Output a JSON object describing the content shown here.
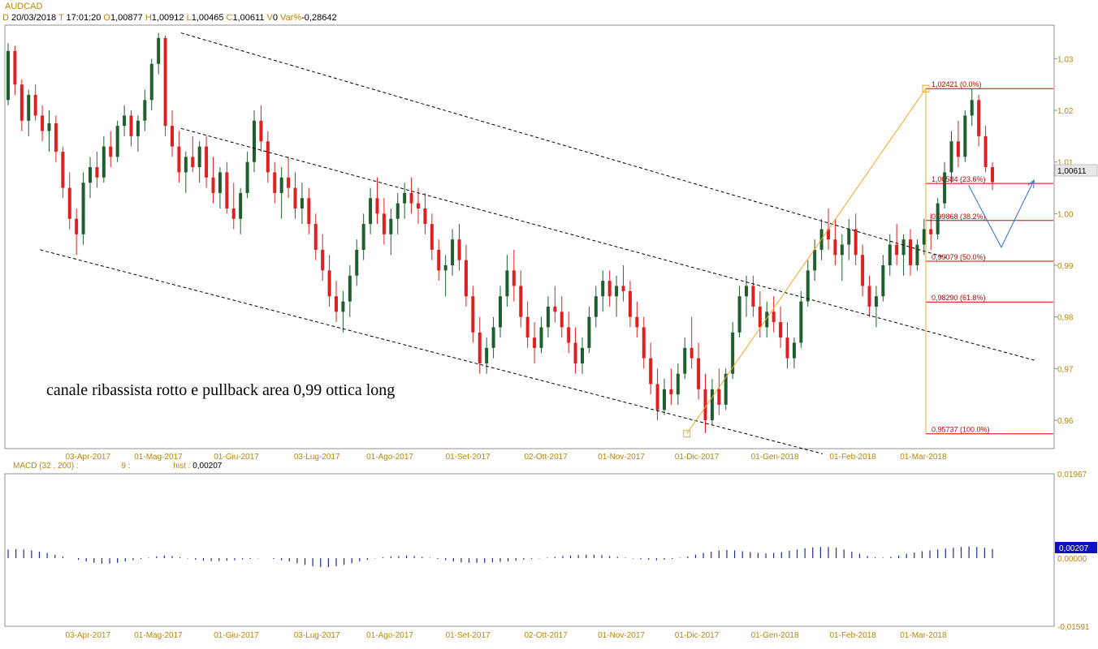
{
  "header": {
    "symbol": "AUDCAD",
    "date_key": "D",
    "date": "20/03/2018",
    "time_key": "T",
    "time": "17:01:20",
    "open_key": "O",
    "open": "1,00877",
    "high_key": "H",
    "high": "1,00912",
    "low_key": "L",
    "low": "1,00465",
    "close_key": "C",
    "close": "1,00611",
    "volume_key": "V",
    "volume": "0",
    "varpct_key": "Var%",
    "varpct": "-0,28642"
  },
  "macd_header": {
    "name": "MACD",
    "params": "(32 , 200) :",
    "signal": "9 :",
    "hist_label": "hist :",
    "hist_value": "0,00207"
  },
  "colors": {
    "up": "#1f5f2f",
    "down": "#e02020",
    "fib": "#d00000",
    "channel": "#000000",
    "orange": "#f5a623",
    "arrow": "#2a6fd6",
    "macd": "#1a2a9a",
    "tick": "#b8860b"
  },
  "chart_data": [
    {
      "type": "candlestick",
      "title": "AUDCAD",
      "x_ticks": [
        "03-Apr-2017",
        "01-Mag-2017",
        "01-Giu-2017",
        "03-Lug-2017",
        "01-Ago-2017",
        "01-Set-2017",
        "02-Ott-2017",
        "01-Nov-2017",
        "01-Dic-2017",
        "01-Gen-2018",
        "01-Feb-2018",
        "01-Mar-2018"
      ],
      "y_ticks": [
        "1,03",
        "1,02",
        "1,01",
        "1,00",
        "0,99",
        "0,98",
        "0,97",
        "0,96"
      ],
      "ylim": [
        0.9545,
        1.0365
      ],
      "last_price_label": "1,00611",
      "annotation": "canale ribassista rotto e pullback area 0,99 ottica long",
      "fibonacci": [
        {
          "label": "1,02421 (0.0%)",
          "value": 1.02421
        },
        {
          "label": "1,00584 (23.6%)",
          "value": 1.00584
        },
        {
          "label": "0,99868 (38.2%)",
          "value": 0.99868
        },
        {
          "label": "0,99079 (50.0%)",
          "value": 0.99079
        },
        {
          "label": "0,98290 (61.8%)",
          "value": 0.9829
        },
        {
          "label": "0,95737 (100.0%)",
          "value": 0.95737
        }
      ],
      "channel_lines": [
        {
          "name": "upper",
          "from": {
            "date": "2017-05-10",
            "value": 1.035
          },
          "to": {
            "date": "2018-03-10",
            "value": 0.9915
          }
        },
        {
          "name": "middle",
          "from": {
            "date": "2017-05-10",
            "value": 1.0165
          },
          "to": {
            "date": "2018-04-15",
            "value": 0.9715
          }
        },
        {
          "name": "lower",
          "from": {
            "date": "2017-03-15",
            "value": 0.993
          },
          "to": {
            "date": "2018-01-20",
            "value": 0.9535
          }
        }
      ],
      "fib_anchor_line": {
        "from": {
          "date": "2017-11-27",
          "value": 0.95737
        },
        "to": {
          "date": "2018-03-02",
          "value": 1.02421
        }
      },
      "projection_arrow": [
        {
          "date": "2018-03-19",
          "value": 1.0055
        },
        {
          "date": "2018-04-01",
          "value": 0.9935
        },
        {
          "date": "2018-04-14",
          "value": 1.0065
        }
      ],
      "candles": [
        [
          1.022,
          1.033,
          1.021,
          1.0315
        ],
        [
          1.0315,
          1.0325,
          1.023,
          1.025
        ],
        [
          1.025,
          1.026,
          1.016,
          1.018
        ],
        [
          1.018,
          1.024,
          1.015,
          1.023
        ],
        [
          1.023,
          1.025,
          1.018,
          1.019
        ],
        [
          1.019,
          1.021,
          1.014,
          1.016
        ],
        [
          1.016,
          1.02,
          1.012,
          1.0175
        ],
        [
          1.0175,
          1.019,
          1.01,
          1.012
        ],
        [
          1.012,
          1.013,
          1.003,
          1.005
        ],
        [
          1.005,
          1.008,
          0.997,
          0.999
        ],
        [
          0.999,
          1.001,
          0.992,
          0.996
        ],
        [
          0.996,
          1.008,
          0.994,
          1.006
        ],
        [
          1.006,
          1.011,
          1.003,
          1.009
        ],
        [
          1.009,
          1.012,
          1.005,
          1.007
        ],
        [
          1.007,
          1.015,
          1.006,
          1.013
        ],
        [
          1.013,
          1.016,
          1.009,
          1.011
        ],
        [
          1.011,
          1.018,
          1.01,
          1.017
        ],
        [
          1.017,
          1.021,
          1.015,
          1.019
        ],
        [
          1.019,
          1.02,
          1.013,
          1.015
        ],
        [
          1.015,
          1.019,
          1.012,
          1.018
        ],
        [
          1.018,
          1.024,
          1.016,
          1.022
        ],
        [
          1.022,
          1.03,
          1.02,
          1.029
        ],
        [
          1.029,
          1.035,
          1.027,
          1.034
        ],
        [
          1.034,
          1.0345,
          1.015,
          1.017
        ],
        [
          1.017,
          1.02,
          1.011,
          1.013
        ],
        [
          1.013,
          1.016,
          1.006,
          1.008
        ],
        [
          1.008,
          1.012,
          1.004,
          1.011
        ],
        [
          1.011,
          1.015,
          1.008,
          1.009
        ],
        [
          1.009,
          1.014,
          1.006,
          1.013
        ],
        [
          1.013,
          1.015,
          1.005,
          1.007
        ],
        [
          1.007,
          1.011,
          1.002,
          1.004
        ],
        [
          1.004,
          1.009,
          1.001,
          1.008
        ],
        [
          1.008,
          1.01,
          1.0,
          1.001
        ],
        [
          1.001,
          1.006,
          0.997,
          0.999
        ],
        [
          0.999,
          1.005,
          0.996,
          1.004
        ],
        [
          1.004,
          1.012,
          1.003,
          1.01
        ],
        [
          1.01,
          1.02,
          1.008,
          1.018
        ],
        [
          1.018,
          1.021,
          1.012,
          1.014
        ],
        [
          1.014,
          1.016,
          1.006,
          1.008
        ],
        [
          1.008,
          1.01,
          1.002,
          1.004
        ],
        [
          1.004,
          1.009,
          0.999,
          1.007
        ],
        [
          1.007,
          1.011,
          1.003,
          1.005
        ],
        [
          1.005,
          1.008,
          0.999,
          1.001
        ],
        [
          1.001,
          1.006,
          0.998,
          1.003
        ],
        [
          1.003,
          1.005,
          0.996,
          0.998
        ],
        [
          0.998,
          1.0,
          0.991,
          0.993
        ],
        [
          0.993,
          0.996,
          0.987,
          0.989
        ],
        [
          0.989,
          0.992,
          0.982,
          0.984
        ],
        [
          0.984,
          0.987,
          0.979,
          0.981
        ],
        [
          0.981,
          0.985,
          0.977,
          0.983
        ],
        [
          0.983,
          0.99,
          0.98,
          0.988
        ],
        [
          0.988,
          0.995,
          0.986,
          0.993
        ],
        [
          0.993,
          1.0,
          0.991,
          0.998
        ],
        [
          0.998,
          1.005,
          0.996,
          1.003
        ],
        [
          1.003,
          1.007,
          0.998,
          1.0
        ],
        [
          1.0,
          1.003,
          0.994,
          0.996
        ],
        [
          0.996,
          1.001,
          0.992,
          0.999
        ],
        [
          0.999,
          1.004,
          0.996,
          1.002
        ],
        [
          1.002,
          1.006,
          0.999,
          1.004
        ],
        [
          1.004,
          1.007,
          1.0,
          1.002
        ],
        [
          1.002,
          1.005,
          0.998,
          1.001
        ],
        [
          1.001,
          1.004,
          0.996,
          0.998
        ],
        [
          0.998,
          1.0,
          0.991,
          0.993
        ],
        [
          0.993,
          0.995,
          0.987,
          0.989
        ],
        [
          0.989,
          0.992,
          0.984,
          0.99
        ],
        [
          0.99,
          0.997,
          0.988,
          0.995
        ],
        [
          0.995,
          0.998,
          0.989,
          0.991
        ],
        [
          0.991,
          0.994,
          0.982,
          0.984
        ],
        [
          0.984,
          0.986,
          0.975,
          0.977
        ],
        [
          0.977,
          0.98,
          0.969,
          0.971
        ],
        [
          0.971,
          0.976,
          0.969,
          0.974
        ],
        [
          0.974,
          0.98,
          0.972,
          0.978
        ],
        [
          0.978,
          0.986,
          0.976,
          0.984
        ],
        [
          0.984,
          0.992,
          0.982,
          0.989
        ],
        [
          0.989,
          0.993,
          0.983,
          0.986
        ],
        [
          0.986,
          0.989,
          0.978,
          0.98
        ],
        [
          0.98,
          0.983,
          0.974,
          0.976
        ],
        [
          0.976,
          0.979,
          0.971,
          0.974
        ],
        [
          0.974,
          0.98,
          0.973,
          0.978
        ],
        [
          0.978,
          0.984,
          0.976,
          0.982
        ],
        [
          0.982,
          0.986,
          0.979,
          0.981
        ],
        [
          0.981,
          0.984,
          0.976,
          0.978
        ],
        [
          0.978,
          0.981,
          0.973,
          0.975
        ],
        [
          0.975,
          0.978,
          0.969,
          0.971
        ],
        [
          0.971,
          0.976,
          0.969,
          0.974
        ],
        [
          0.974,
          0.982,
          0.973,
          0.98
        ],
        [
          0.98,
          0.986,
          0.978,
          0.984
        ],
        [
          0.984,
          0.989,
          0.981,
          0.987
        ],
        [
          0.987,
          0.989,
          0.982,
          0.984
        ],
        [
          0.984,
          0.988,
          0.98,
          0.986
        ],
        [
          0.986,
          0.99,
          0.983,
          0.985
        ],
        [
          0.985,
          0.987,
          0.978,
          0.98
        ],
        [
          0.98,
          0.983,
          0.976,
          0.978
        ],
        [
          0.978,
          0.98,
          0.97,
          0.972
        ],
        [
          0.972,
          0.975,
          0.965,
          0.967
        ],
        [
          0.967,
          0.97,
          0.96,
          0.962
        ],
        [
          0.962,
          0.968,
          0.961,
          0.966
        ],
        [
          0.966,
          0.97,
          0.963,
          0.965
        ],
        [
          0.965,
          0.971,
          0.963,
          0.969
        ],
        [
          0.969,
          0.976,
          0.968,
          0.974
        ],
        [
          0.974,
          0.98,
          0.97,
          0.972
        ],
        [
          0.972,
          0.975,
          0.964,
          0.966
        ],
        [
          0.966,
          0.969,
          0.9575,
          0.96
        ],
        [
          0.96,
          0.968,
          0.959,
          0.966
        ],
        [
          0.966,
          0.97,
          0.961,
          0.963
        ],
        [
          0.963,
          0.97,
          0.962,
          0.969
        ],
        [
          0.969,
          0.979,
          0.968,
          0.977
        ],
        [
          0.977,
          0.986,
          0.976,
          0.984
        ],
        [
          0.984,
          0.988,
          0.98,
          0.986
        ],
        [
          0.986,
          0.988,
          0.98,
          0.982
        ],
        [
          0.982,
          0.985,
          0.976,
          0.978
        ],
        [
          0.978,
          0.983,
          0.976,
          0.981
        ],
        [
          0.981,
          0.984,
          0.977,
          0.979
        ],
        [
          0.979,
          0.982,
          0.974,
          0.976
        ],
        [
          0.976,
          0.979,
          0.97,
          0.972
        ],
        [
          0.972,
          0.976,
          0.97,
          0.975
        ],
        [
          0.975,
          0.985,
          0.974,
          0.983
        ],
        [
          0.983,
          0.991,
          0.982,
          0.989
        ],
        [
          0.989,
          0.995,
          0.987,
          0.993
        ],
        [
          0.993,
          0.999,
          0.991,
          0.997
        ],
        [
          0.997,
          1.001,
          0.993,
          0.995
        ],
        [
          0.995,
          0.999,
          0.99,
          0.992
        ],
        [
          0.992,
          0.996,
          0.987,
          0.994
        ],
        [
          0.994,
          0.999,
          0.991,
          0.997
        ],
        [
          0.997,
          1.0,
          0.99,
          0.992
        ],
        [
          0.992,
          0.994,
          0.984,
          0.986
        ],
        [
          0.986,
          0.988,
          0.98,
          0.982
        ],
        [
          0.982,
          0.986,
          0.978,
          0.984
        ],
        [
          0.984,
          0.992,
          0.983,
          0.99
        ],
        [
          0.99,
          0.996,
          0.988,
          0.994
        ],
        [
          0.994,
          0.998,
          0.99,
          0.992
        ],
        [
          0.992,
          0.996,
          0.988,
          0.995
        ],
        [
          0.995,
          0.997,
          0.988,
          0.99
        ],
        [
          0.99,
          0.995,
          0.989,
          0.994
        ],
        [
          0.994,
          0.999,
          0.992,
          0.997
        ],
        [
          0.997,
          1.0,
          0.993,
          0.996
        ],
        [
          0.996,
          1.003,
          0.995,
          1.002
        ],
        [
          1.002,
          1.01,
          1.001,
          1.008
        ],
        [
          1.008,
          1.016,
          1.006,
          1.014
        ],
        [
          1.014,
          1.018,
          1.009,
          1.011
        ],
        [
          1.011,
          1.02,
          1.01,
          1.019
        ],
        [
          1.019,
          1.0242,
          1.017,
          1.022
        ],
        [
          1.022,
          1.023,
          1.013,
          1.015
        ],
        [
          1.015,
          1.017,
          1.008,
          1.009
        ],
        [
          1.009,
          1.01,
          1.0046,
          1.0061
        ]
      ]
    },
    {
      "type": "bar",
      "title": "MACD",
      "y_ticks": [
        "0,01967",
        "0,00000",
        "-0,01591"
      ],
      "ylim": [
        -0.01591,
        0.01967
      ],
      "last_value_label": "0,00207",
      "values": [
        0.002,
        0.0021,
        0.002,
        0.0018,
        0.0015,
        0.0012,
        0.0008,
        0.0004,
        0.0,
        -0.0004,
        -0.0008,
        -0.0011,
        -0.0013,
        -0.0013,
        -0.0011,
        -0.0008,
        -0.0005,
        -0.0002,
        0.0001,
        0.0004,
        0.0006,
        0.0005,
        0.0002,
        -0.0001,
        -0.0004,
        -0.0006,
        -0.0007,
        -0.0007,
        -0.0006,
        -0.0005,
        -0.0003,
        -0.0002,
        -0.0001,
        0.0,
        -0.0002,
        -0.0005,
        -0.0008,
        -0.0012,
        -0.0016,
        -0.0019,
        -0.0021,
        -0.0021,
        -0.0019,
        -0.0016,
        -0.0012,
        -0.0008,
        -0.0004,
        -0.0001,
        0.0002,
        0.0004,
        0.0005,
        0.0006,
        0.0005,
        0.0003,
        0.0001,
        -0.0002,
        -0.0005,
        -0.0008,
        -0.001,
        -0.0011,
        -0.0011,
        -0.0011,
        -0.001,
        -0.0009,
        -0.0008,
        -0.0006,
        -0.0004,
        -0.0002,
        -0.0001,
        0.0001,
        0.0003,
        0.0005,
        0.0006,
        0.0007,
        0.0008,
        0.0008,
        0.0007,
        0.0005,
        0.0003,
        0.0001,
        -0.0001,
        -0.0003,
        -0.0004,
        -0.0005,
        -0.0004,
        -0.0002,
        0.0001,
        0.0004,
        0.0008,
        0.0012,
        0.0015,
        0.0018,
        0.0019,
        0.0018,
        0.0016,
        0.0014,
        0.0012,
        0.0011,
        0.0012,
        0.0014,
        0.0017,
        0.002,
        0.0023,
        0.0025,
        0.0026,
        0.0026,
        0.0024,
        0.002,
        0.0015,
        0.001,
        0.0005,
        0.0002,
        0.0001,
        0.0003,
        0.0006,
        0.001,
        0.0013,
        0.0016,
        0.0018,
        0.002,
        0.0022,
        0.0024,
        0.0026,
        0.0027,
        0.0026,
        0.0024,
        0.0021
      ]
    }
  ]
}
